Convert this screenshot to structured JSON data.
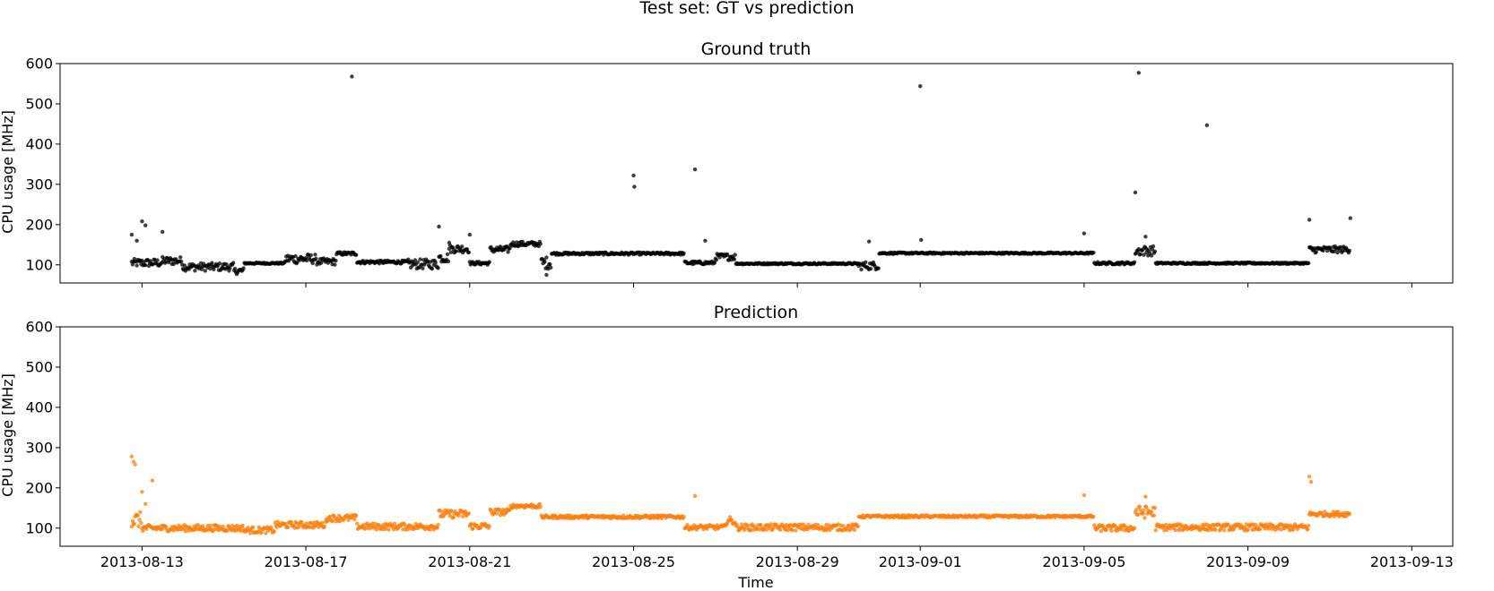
{
  "figure": {
    "suptitle": "Test set: GT vs prediction"
  },
  "chart_data": [
    {
      "type": "scatter",
      "title": "Ground truth",
      "xlabel": "",
      "ylabel": "CPU usage [MHz]",
      "ylim": [
        55,
        600
      ],
      "xlim": [
        "2013-08-11 00:00",
        "2013-09-14 00:00"
      ],
      "yticks": [
        100,
        200,
        300,
        400,
        500,
        600
      ],
      "xticks": [
        "2013-08-13",
        "2013-08-17",
        "2013-08-21",
        "2013-08-25",
        "2013-08-29",
        "2013-09-01",
        "2013-09-05",
        "2013-09-09",
        "2013-09-13"
      ],
      "show_xtick_labels": false,
      "color": "#000000",
      "grid": false,
      "segments": [
        {
          "start": "2013-08-12 18:00",
          "end": "2013-08-13 12:00",
          "level": 105,
          "noise": 10
        },
        {
          "start": "2013-08-13 12:00",
          "end": "2013-08-14 00:00",
          "level": 110,
          "noise": 10
        },
        {
          "start": "2013-08-14 00:00",
          "end": "2013-08-15 06:00",
          "level": 95,
          "noise": 10
        },
        {
          "start": "2013-08-15 06:00",
          "end": "2013-08-15 12:00",
          "level": 85,
          "noise": 8
        },
        {
          "start": "2013-08-15 12:00",
          "end": "2013-08-16 12:00",
          "level": 104,
          "noise": 2
        },
        {
          "start": "2013-08-16 12:00",
          "end": "2013-08-17 06:00",
          "level": 115,
          "noise": 12
        },
        {
          "start": "2013-08-17 06:00",
          "end": "2013-08-17 18:00",
          "level": 108,
          "noise": 8
        },
        {
          "start": "2013-08-17 18:00",
          "end": "2013-08-18 06:00",
          "level": 128,
          "noise": 4
        },
        {
          "start": "2013-08-18 06:00",
          "end": "2013-08-19 12:00",
          "level": 107,
          "noise": 4
        },
        {
          "start": "2013-08-19 12:00",
          "end": "2013-08-20 06:00",
          "level": 102,
          "noise": 12
        },
        {
          "start": "2013-08-20 06:00",
          "end": "2013-08-20 12:00",
          "level": 118,
          "noise": 12
        },
        {
          "start": "2013-08-20 12:00",
          "end": "2013-08-21 00:00",
          "level": 140,
          "noise": 10
        },
        {
          "start": "2013-08-21 00:00",
          "end": "2013-08-21 12:00",
          "level": 104,
          "noise": 4
        },
        {
          "start": "2013-08-21 12:00",
          "end": "2013-08-22 00:00",
          "level": 138,
          "noise": 8
        },
        {
          "start": "2013-08-22 00:00",
          "end": "2013-08-22 18:00",
          "level": 152,
          "noise": 6
        },
        {
          "start": "2013-08-22 18:00",
          "end": "2013-08-23 00:00",
          "level": 105,
          "noise": 15
        },
        {
          "start": "2013-08-23 00:00",
          "end": "2013-08-26 06:00",
          "level": 128,
          "noise": 3
        },
        {
          "start": "2013-08-26 06:00",
          "end": "2013-08-27 00:00",
          "level": 105,
          "noise": 4
        },
        {
          "start": "2013-08-27 00:00",
          "end": "2013-08-27 12:00",
          "level": 120,
          "noise": 8
        },
        {
          "start": "2013-08-27 12:00",
          "end": "2013-08-30 12:00",
          "level": 103,
          "noise": 2
        },
        {
          "start": "2013-08-30 12:00",
          "end": "2013-08-31 00:00",
          "level": 98,
          "noise": 10
        },
        {
          "start": "2013-08-31 00:00",
          "end": "2013-09-05 06:00",
          "level": 129,
          "noise": 2
        },
        {
          "start": "2013-09-05 06:00",
          "end": "2013-09-06 06:00",
          "level": 104,
          "noise": 3
        },
        {
          "start": "2013-09-06 06:00",
          "end": "2013-09-06 18:00",
          "level": 135,
          "noise": 12
        },
        {
          "start": "2013-09-06 18:00",
          "end": "2013-09-10 12:00",
          "level": 104,
          "noise": 2
        },
        {
          "start": "2013-09-10 12:00",
          "end": "2013-09-11 12:00",
          "level": 138,
          "noise": 8
        }
      ],
      "outliers": [
        {
          "x": "2013-08-12 18:00",
          "y": 175
        },
        {
          "x": "2013-08-12 21:00",
          "y": 160
        },
        {
          "x": "2013-08-13 00:00",
          "y": 208
        },
        {
          "x": "2013-08-13 02:00",
          "y": 198
        },
        {
          "x": "2013-08-13 12:00",
          "y": 182
        },
        {
          "x": "2013-08-18 03:00",
          "y": 568
        },
        {
          "x": "2013-08-20 06:00",
          "y": 195
        },
        {
          "x": "2013-08-20 12:00",
          "y": 155
        },
        {
          "x": "2013-08-21 00:00",
          "y": 175
        },
        {
          "x": "2013-08-22 21:00",
          "y": 75
        },
        {
          "x": "2013-08-25 00:00",
          "y": 322
        },
        {
          "x": "2013-08-25 00:30",
          "y": 294
        },
        {
          "x": "2013-08-26 12:00",
          "y": 337
        },
        {
          "x": "2013-08-26 18:00",
          "y": 160
        },
        {
          "x": "2013-08-30 18:00",
          "y": 158
        },
        {
          "x": "2013-09-01 00:00",
          "y": 544
        },
        {
          "x": "2013-09-01 00:30",
          "y": 162
        },
        {
          "x": "2013-09-05 00:00",
          "y": 178
        },
        {
          "x": "2013-09-06 08:00",
          "y": 577
        },
        {
          "x": "2013-09-06 06:00",
          "y": 280
        },
        {
          "x": "2013-09-06 12:00",
          "y": 170
        },
        {
          "x": "2013-09-08 00:00",
          "y": 447
        },
        {
          "x": "2013-09-10 12:00",
          "y": 212
        },
        {
          "x": "2013-09-11 12:00",
          "y": 216
        }
      ]
    },
    {
      "type": "scatter",
      "title": "Prediction",
      "xlabel": "Time",
      "ylabel": "CPU usage [MHz]",
      "ylim": [
        55,
        600
      ],
      "xlim": [
        "2013-08-11 00:00",
        "2013-09-14 00:00"
      ],
      "yticks": [
        100,
        200,
        300,
        400,
        500,
        600
      ],
      "xticks": [
        "2013-08-13",
        "2013-08-17",
        "2013-08-21",
        "2013-08-25",
        "2013-08-29",
        "2013-09-01",
        "2013-09-05",
        "2013-09-09",
        "2013-09-13"
      ],
      "show_xtick_labels": true,
      "color": "#ff7f0e",
      "grid": false,
      "segments": [
        {
          "start": "2013-08-12 18:00",
          "end": "2013-08-13 00:00",
          "level": 120,
          "noise": 20
        },
        {
          "start": "2013-08-13 00:00",
          "end": "2013-08-15 12:00",
          "level": 100,
          "noise": 8
        },
        {
          "start": "2013-08-15 12:00",
          "end": "2013-08-16 06:00",
          "level": 95,
          "noise": 8
        },
        {
          "start": "2013-08-16 06:00",
          "end": "2013-08-17 12:00",
          "level": 108,
          "noise": 8
        },
        {
          "start": "2013-08-17 12:00",
          "end": "2013-08-18 06:00",
          "level": 125,
          "noise": 8
        },
        {
          "start": "2013-08-18 06:00",
          "end": "2013-08-20 06:00",
          "level": 104,
          "noise": 8
        },
        {
          "start": "2013-08-20 06:00",
          "end": "2013-08-21 00:00",
          "level": 135,
          "noise": 10
        },
        {
          "start": "2013-08-21 00:00",
          "end": "2013-08-21 12:00",
          "level": 105,
          "noise": 8
        },
        {
          "start": "2013-08-21 12:00",
          "end": "2013-08-22 00:00",
          "level": 140,
          "noise": 8
        },
        {
          "start": "2013-08-22 00:00",
          "end": "2013-08-22 18:00",
          "level": 155,
          "noise": 5
        },
        {
          "start": "2013-08-22 18:00",
          "end": "2013-08-26 06:00",
          "level": 128,
          "noise": 4
        },
        {
          "start": "2013-08-26 06:00",
          "end": "2013-08-27 06:00",
          "level": 102,
          "noise": 6
        },
        {
          "start": "2013-08-27 06:00",
          "end": "2013-08-27 12:00",
          "level": 118,
          "noise": 10
        },
        {
          "start": "2013-08-27 12:00",
          "end": "2013-08-30 12:00",
          "level": 102,
          "noise": 8
        },
        {
          "start": "2013-08-30 12:00",
          "end": "2013-09-05 06:00",
          "level": 129,
          "noise": 3
        },
        {
          "start": "2013-09-05 06:00",
          "end": "2013-09-06 06:00",
          "level": 100,
          "noise": 8
        },
        {
          "start": "2013-09-06 06:00",
          "end": "2013-09-06 18:00",
          "level": 140,
          "noise": 15
        },
        {
          "start": "2013-09-06 18:00",
          "end": "2013-09-10 12:00",
          "level": 102,
          "noise": 8
        },
        {
          "start": "2013-09-10 12:00",
          "end": "2013-09-11 12:00",
          "level": 135,
          "noise": 6
        }
      ],
      "outliers": [
        {
          "x": "2013-08-12 18:00",
          "y": 278
        },
        {
          "x": "2013-08-12 19:00",
          "y": 265
        },
        {
          "x": "2013-08-12 20:00",
          "y": 258
        },
        {
          "x": "2013-08-13 00:00",
          "y": 190
        },
        {
          "x": "2013-08-13 02:00",
          "y": 160
        },
        {
          "x": "2013-08-13 06:00",
          "y": 218
        },
        {
          "x": "2013-08-26 12:00",
          "y": 180
        },
        {
          "x": "2013-09-05 00:00",
          "y": 182
        },
        {
          "x": "2013-09-06 12:00",
          "y": 178
        },
        {
          "x": "2013-09-10 12:00",
          "y": 228
        },
        {
          "x": "2013-09-10 13:00",
          "y": 215
        }
      ]
    }
  ]
}
